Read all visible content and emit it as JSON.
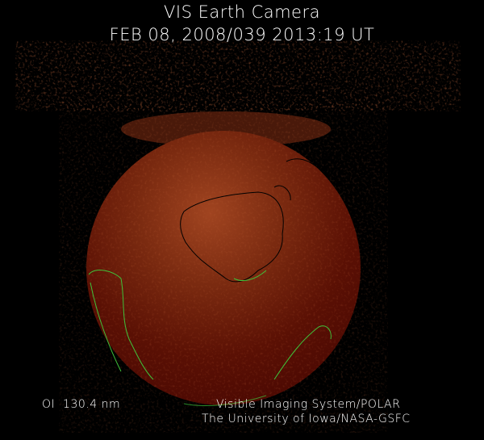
{
  "header": {
    "title": "VIS Earth Camera",
    "timestamp": "FEB 08, 2008/039 2013:19 UT"
  },
  "footer": {
    "wavelength": "OI  130.4 nm",
    "credit_line1": "Visible Imaging System/POLAR",
    "credit_line2": "The University of Iowa/NASA-GSFC"
  },
  "colors": {
    "background": "#000000",
    "earth_disk": "#5a0c02",
    "aurora": "#b8562a",
    "coastline_dark": "#000000",
    "coastline_green": "#3fc23a",
    "text": "#ffffff"
  }
}
